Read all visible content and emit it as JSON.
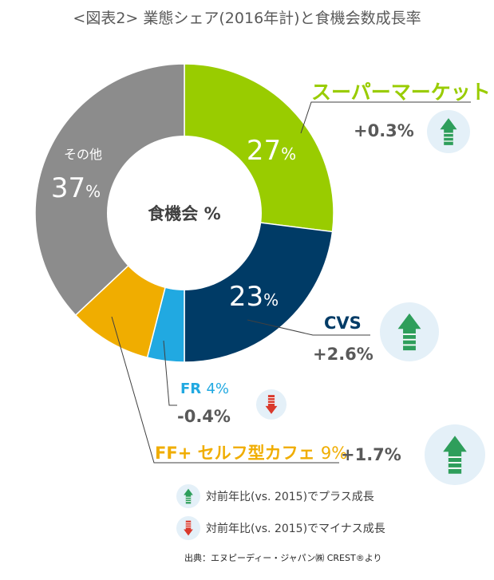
{
  "title": "<図表2> 業態シェア(2016年計)と食機会数成長率",
  "center_label": "食機会 %",
  "colors": {
    "supermarket": "#99cc00",
    "cvs": "#003b66",
    "fr": "#21a9e1",
    "ff": "#f0ad00",
    "other": "#8c8c8c",
    "up": "#2e9e5b",
    "down": "#d9392c",
    "circle_bg": "#e4f0f8"
  },
  "chart_data": {
    "type": "pie",
    "title": "<図表2> 業態シェア(2016年計)と食機会数成長率",
    "unit": "%",
    "slices": [
      {
        "key": "supermarket",
        "label": "スーパーマーケット",
        "value": 27,
        "growth": "+0.3%",
        "direction": "up"
      },
      {
        "key": "cvs",
        "label": "CVS",
        "value": 23,
        "growth": "+2.6%",
        "direction": "up"
      },
      {
        "key": "fr",
        "label": "FR",
        "value": 4,
        "growth": "-0.4%",
        "direction": "down"
      },
      {
        "key": "ff",
        "label": "FF+ セルフ型カフェ",
        "value": 9,
        "growth": "+1.7%",
        "direction": "up"
      },
      {
        "key": "other",
        "label": "その他",
        "value": 37
      }
    ],
    "legend": [
      {
        "direction": "up",
        "text": "対前年比(vs. 2015)でプラス成長"
      },
      {
        "direction": "down",
        "text": "対前年比(vs. 2015)でマイナス成長"
      }
    ]
  },
  "source": "出典：エヌピーディー・ジャパン㈱ CREST®より"
}
